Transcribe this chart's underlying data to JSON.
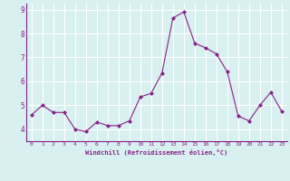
{
  "x": [
    0,
    1,
    2,
    3,
    4,
    5,
    6,
    7,
    8,
    9,
    10,
    11,
    12,
    13,
    14,
    15,
    16,
    17,
    18,
    19,
    20,
    21,
    22,
    23
  ],
  "y": [
    4.6,
    5.0,
    4.7,
    4.7,
    4.0,
    3.9,
    4.3,
    4.15,
    4.15,
    4.35,
    5.35,
    5.5,
    6.35,
    8.65,
    8.9,
    7.6,
    7.4,
    7.15,
    6.4,
    4.55,
    4.35,
    5.0,
    5.55,
    4.75
  ],
  "line_color": "#882288",
  "marker": "D",
  "marker_size": 2,
  "bg_color": "#d8f0f0",
  "grid_color": "#ffffff",
  "xlabel": "Windchill (Refroidissement éolien,°C)",
  "xlabel_color": "#882288",
  "tick_color": "#882288",
  "ylim": [
    3.5,
    9.25
  ],
  "xlim": [
    -0.5,
    23.5
  ],
  "yticks": [
    4,
    5,
    6,
    7,
    8,
    9
  ],
  "xticks": [
    0,
    1,
    2,
    3,
    4,
    5,
    6,
    7,
    8,
    9,
    10,
    11,
    12,
    13,
    14,
    15,
    16,
    17,
    18,
    19,
    20,
    21,
    22,
    23
  ]
}
